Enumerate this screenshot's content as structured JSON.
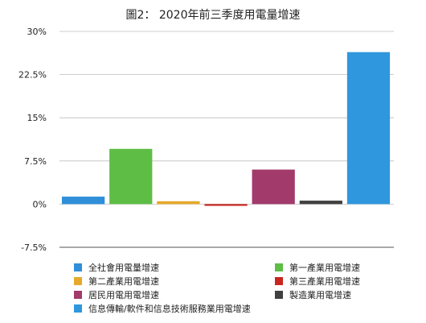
{
  "chart_data": {
    "type": "bar",
    "title": "圖2： 2020年前三季度用電量增速",
    "xlabel": "",
    "ylabel": "",
    "ylim": [
      -7.5,
      30
    ],
    "yticks": [
      "30%",
      "22.5%",
      "15%",
      "7.5%",
      "0%",
      "-7.5%"
    ],
    "ytick_values": [
      30,
      22.5,
      15,
      7.5,
      0,
      -7.5
    ],
    "grid": true,
    "legend_position": "bottom",
    "series": [
      {
        "name": "全社會用電量增速",
        "value": 1.3,
        "color": "#2f8fd8"
      },
      {
        "name": "第一產業用電增速",
        "value": 9.6,
        "color": "#5ebd45"
      },
      {
        "name": "第二產業用電增速",
        "value": 0.5,
        "color": "#e6a92a"
      },
      {
        "name": "第三產業用電增速",
        "value": -0.3,
        "color": "#c8261e"
      },
      {
        "name": "居民用電用電增速",
        "value": 6.0,
        "color": "#a23a6c"
      },
      {
        "name": "製造業用電增速",
        "value": 0.6,
        "color": "#404040"
      },
      {
        "name": "信息傳輸/軟件和信息技術服務業用電增速",
        "value": 26.4,
        "color": "#2e97dd"
      }
    ]
  }
}
